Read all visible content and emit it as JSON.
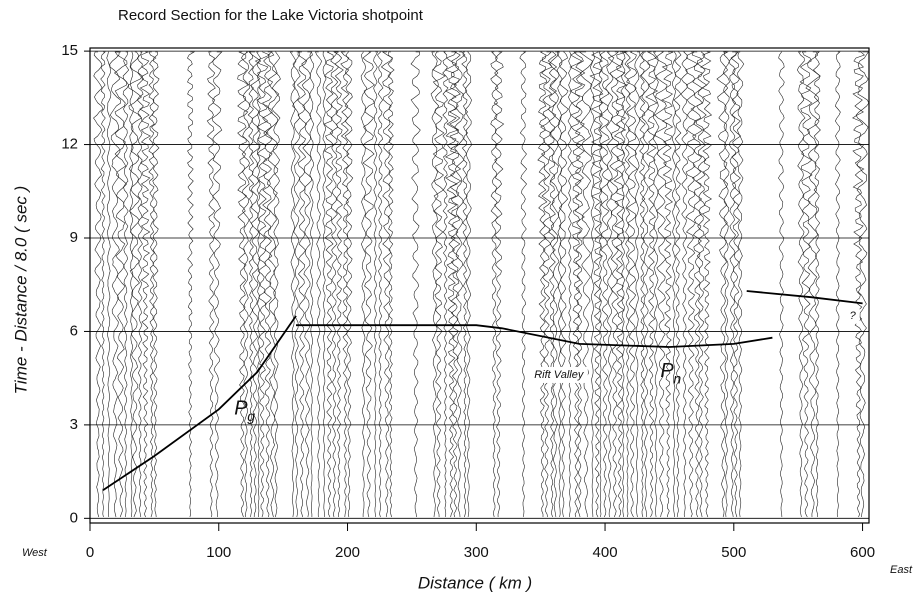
{
  "chart_data": {
    "type": "line",
    "title": "Record  Section for the Lake Victoria shotpoint",
    "x_label": "Distance ( km )",
    "y_label": "Time - Distance / 8.0 ( sec )",
    "left_label": "West",
    "right_label": "East",
    "xlim": [
      0,
      605
    ],
    "ylim": [
      -0.15,
      15.1
    ],
    "xticks": [
      0,
      100,
      200,
      300,
      400,
      500,
      600
    ],
    "yticks": [
      0,
      3,
      6,
      9,
      12,
      15
    ],
    "grid": true,
    "series": [
      {
        "color": "#000000",
        "x": [
          10,
          50,
          100,
          130,
          160
        ],
        "values": [
          0.9,
          2.0,
          3.5,
          4.7,
          6.5
        ]
      },
      {
        "color": "#000000",
        "x": [
          160,
          300,
          320,
          380,
          450,
          500,
          530
        ],
        "values": [
          6.2,
          6.2,
          6.1,
          5.6,
          5.5,
          5.6,
          5.8
        ]
      },
      {
        "color": "#000000",
        "x": [
          510,
          560,
          600
        ],
        "values": [
          7.3,
          7.1,
          6.9
        ]
      }
    ],
    "annotations": [
      {
        "text": "P",
        "sub": "g",
        "x": 112,
        "y": 3.5
      },
      {
        "text": "P",
        "sub": "n",
        "x": 443,
        "y": 4.7
      },
      {
        "text": "Rift  Valley",
        "x": 345,
        "y": 4.6
      },
      {
        "text": "?",
        "x": 590,
        "y": 6.5
      }
    ]
  }
}
